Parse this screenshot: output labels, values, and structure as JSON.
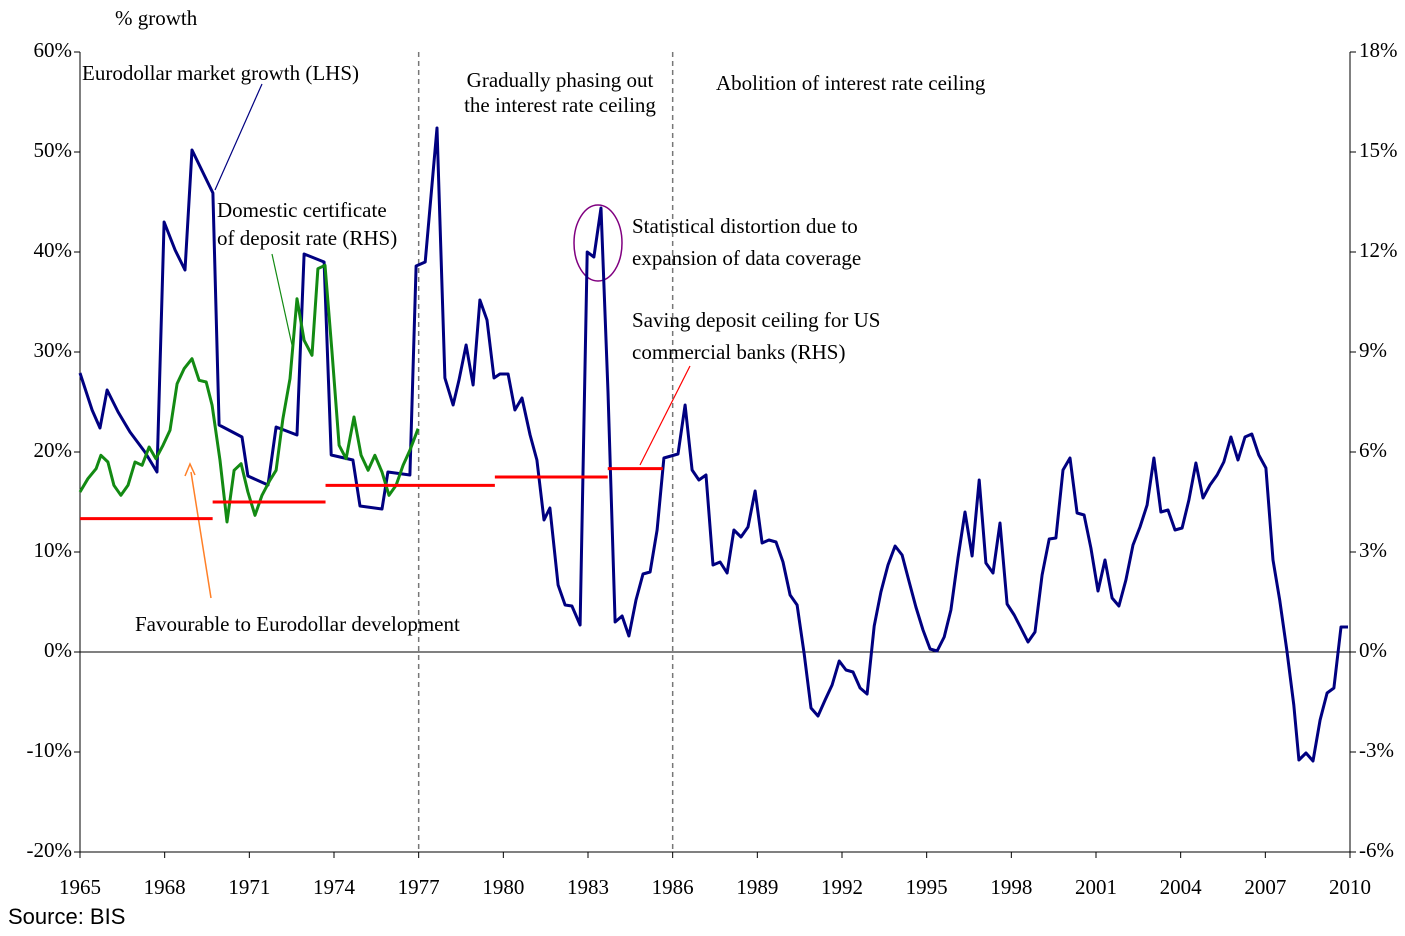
{
  "chart_data": {
    "type": "line",
    "y_axis_label": "% growth",
    "source": "Source: BIS",
    "xlim": [
      1965,
      2010
    ],
    "xticks": [
      1965,
      1968,
      1971,
      1974,
      1977,
      1980,
      1983,
      1986,
      1989,
      1992,
      1995,
      1998,
      2001,
      2004,
      2007,
      2010
    ],
    "ylim": [
      -20,
      60
    ],
    "yticks": [
      {
        "value": -20,
        "label": "-20%"
      },
      {
        "value": -10,
        "label": "-10%"
      },
      {
        "value": 0,
        "label": "0%"
      },
      {
        "value": 10,
        "label": "10%"
      },
      {
        "value": 20,
        "label": "20%"
      },
      {
        "value": 30,
        "label": "30%"
      },
      {
        "value": 40,
        "label": "40%"
      },
      {
        "value": 50,
        "label": "50%"
      },
      {
        "value": 60,
        "label": "60%"
      }
    ],
    "y2lim": [
      -6,
      18
    ],
    "y2ticks": [
      {
        "value": -6,
        "label": "-6%"
      },
      {
        "value": -3,
        "label": "-3%"
      },
      {
        "value": 0,
        "label": "0%"
      },
      {
        "value": 3,
        "label": "3%"
      },
      {
        "value": 6,
        "label": "6%"
      },
      {
        "value": 9,
        "label": "9%"
      },
      {
        "value": 12,
        "label": "12%"
      },
      {
        "value": 15,
        "label": "15%"
      },
      {
        "value": 18,
        "label": "18%"
      }
    ],
    "vlines": [
      1977,
      1986
    ],
    "series": [
      {
        "color": "#000080",
        "x": [
          1965.0,
          1965.43,
          1965.71,
          1965.96,
          1966.35,
          1966.77,
          1967.3,
          1967.73,
          1967.98,
          1968.37,
          1968.72,
          1968.97,
          1969.71,
          1969.93,
          1970.74,
          1970.95,
          1971.66,
          1971.95,
          1972.69,
          1972.94,
          1973.65,
          1973.9,
          1974.67,
          1974.92,
          1975.7,
          1975.91,
          1976.69,
          1976.91,
          1977.23,
          1977.65,
          1977.93,
          1978.22,
          1978.43,
          1978.68,
          1978.93,
          1979.17,
          1979.42,
          1979.67,
          1979.88,
          1980.17,
          1980.41,
          1980.66,
          1980.95,
          1981.19,
          1981.44,
          1981.65,
          1981.94,
          1982.19,
          1982.43,
          1982.72,
          1982.97,
          1983.21,
          1983.46,
          1983.71,
          1983.96,
          1984.21,
          1984.45,
          1984.7,
          1984.95,
          1985.2,
          1985.45,
          1985.69,
          1985.94,
          1986.19,
          1986.44,
          1986.69,
          1986.93,
          1987.18,
          1987.43,
          1987.68,
          1987.93,
          1988.17,
          1988.42,
          1988.67,
          1988.92,
          1989.17,
          1989.41,
          1989.66,
          1989.91,
          1990.16,
          1990.41,
          1990.66,
          1990.9,
          1991.15,
          1991.4,
          1991.65,
          1991.9,
          1992.14,
          1992.39,
          1992.64,
          1992.89,
          1993.14,
          1993.38,
          1993.63,
          1993.88,
          1994.13,
          1994.38,
          1994.62,
          1994.87,
          1995.12,
          1995.37,
          1995.62,
          1995.86,
          1996.11,
          1996.36,
          1996.61,
          1996.86,
          1997.1,
          1997.35,
          1997.6,
          1997.85,
          1998.1,
          1998.34,
          1998.59,
          1998.84,
          1999.09,
          1999.34,
          1999.58,
          1999.83,
          2000.08,
          2000.33,
          2000.58,
          2000.82,
          2001.07,
          2001.32,
          2001.57,
          2001.81,
          2002.06,
          2002.31,
          2002.56,
          2002.81,
          2003.05,
          2003.3,
          2003.55,
          2003.8,
          2004.05,
          2004.29,
          2004.54,
          2004.79,
          2005.04,
          2005.29,
          2005.53,
          2005.78,
          2006.03,
          2006.28,
          2006.52,
          2006.77,
          2007.02,
          2007.27,
          2007.51,
          2007.76,
          2008.01,
          2008.19,
          2008.44,
          2008.69,
          2008.94,
          2009.19,
          2009.43,
          2009.68,
          2009.93
        ],
        "values": [
          27.9,
          24.2,
          22.4,
          26.2,
          24,
          22,
          20,
          18,
          43,
          40.2,
          38.2,
          50.2,
          45.9,
          22.7,
          21.5,
          17.6,
          16.7,
          22.5,
          21.7,
          39.8,
          39,
          19.7,
          19.2,
          14.6,
          14.3,
          18,
          17.7,
          38.6,
          39,
          52.4,
          27.4,
          24.7,
          27.2,
          30.7,
          26.7,
          35.2,
          33.2,
          27.4,
          27.8,
          27.8,
          24.2,
          25.4,
          21.7,
          19.2,
          13.2,
          14.4,
          6.7,
          4.7,
          4.6,
          2.7,
          40,
          39.5,
          44.4,
          26,
          3,
          3.6,
          1.6,
          5.2,
          7.8,
          8,
          12.2,
          19.4,
          19.6,
          19.8,
          24.7,
          18.2,
          17.2,
          17.7,
          8.7,
          9,
          7.9,
          12.2,
          11.5,
          12.5,
          16.1,
          10.9,
          11.2,
          11,
          9,
          5.7,
          4.7,
          -0.2,
          -5.6,
          -6.4,
          -4.8,
          -3.3,
          -0.9,
          -1.8,
          -2,
          -3.6,
          -4.2,
          2.6,
          6,
          8.7,
          10.6,
          9.7,
          7,
          4.5,
          2.2,
          0.3,
          0.1,
          1.5,
          4.2,
          9.4,
          14,
          9.6,
          17.2,
          8.9,
          7.9,
          12.9,
          4.8,
          3.7,
          2.4,
          1,
          2,
          7.7,
          11.3,
          11.4,
          18.2,
          19.4,
          13.9,
          13.7,
          10.4,
          6.1,
          9.2,
          5.4,
          4.6,
          7.2,
          10.7,
          12.5,
          14.7,
          19.4,
          14,
          14.2,
          12.2,
          12.4,
          15.2,
          18.9,
          15.4,
          16.7,
          17.7,
          19,
          21.5,
          19.2,
          21.5,
          21.8,
          19.7,
          18.4,
          9.2,
          5.2,
          0.2,
          -5.3,
          -10.8,
          -10.1,
          -10.9,
          -6.8,
          -4.1,
          -3.6,
          2.5,
          2.5
        ]
      },
      {
        "color": "#138a13",
        "axis": "y2",
        "x": [
          1965.0,
          1965.28,
          1965.57,
          1965.74,
          1965.99,
          1966.2,
          1966.45,
          1966.7,
          1966.95,
          1967.2,
          1967.45,
          1967.69,
          1967.94,
          1968.19,
          1968.44,
          1968.69,
          1968.97,
          1969.22,
          1969.47,
          1969.68,
          1969.96,
          1970.21,
          1970.46,
          1970.71,
          1970.95,
          1971.2,
          1971.45,
          1971.73,
          1971.95,
          1972.19,
          1972.44,
          1972.69,
          1972.94,
          1973.22,
          1973.43,
          1973.68,
          1973.93,
          1974.18,
          1974.43,
          1974.71,
          1974.96,
          1975.21,
          1975.45,
          1975.7,
          1975.95,
          1976.2,
          1976.45,
          1976.69,
          1976.98
        ],
        "values": [
          4.8,
          5.2,
          5.5,
          5.9,
          5.7,
          5,
          4.7,
          5,
          5.7,
          5.6,
          6.15,
          5.8,
          6.2,
          6.65,
          8.05,
          8.5,
          8.8,
          8.15,
          8.1,
          7.4,
          5.75,
          3.9,
          5.45,
          5.65,
          4.8,
          4.1,
          4.7,
          5.15,
          5.45,
          7,
          8.2,
          10.6,
          9.35,
          8.9,
          11.5,
          11.6,
          9,
          6.2,
          5.8,
          7.05,
          5.9,
          5.45,
          5.9,
          5.4,
          4.7,
          5,
          5.6,
          6.05,
          6.7
        ]
      }
    ],
    "ceiling": {
      "color": "#ff0000",
      "axis": "y2",
      "segments": [
        {
          "x": [
            1965,
            1969.7
          ],
          "value": 4
        },
        {
          "x": [
            1969.7,
            1973.7
          ],
          "value": 4.5
        },
        {
          "x": [
            1973.7,
            1979.7
          ],
          "value": 5
        },
        {
          "x": [
            1979.7,
            1983.7
          ],
          "value": 5.25
        },
        {
          "x": [
            1983.7,
            1985.65
          ],
          "value": 5.5
        }
      ]
    },
    "annotations": [
      [
        "Eurodollar market growth (LHS)"
      ],
      [
        "Gradually phasing out",
        "the interest rate ceiling"
      ],
      [
        "Abolition of interest rate ceiling"
      ],
      [
        "Domestic certificate",
        "of deposit rate (RHS)"
      ],
      [
        "Statistical distortion due to",
        "expansion of data coverage"
      ],
      [
        "Saving deposit ceiling for US",
        "commercial banks (RHS)"
      ],
      [
        "Favourable to Eurodollar development"
      ]
    ]
  }
}
